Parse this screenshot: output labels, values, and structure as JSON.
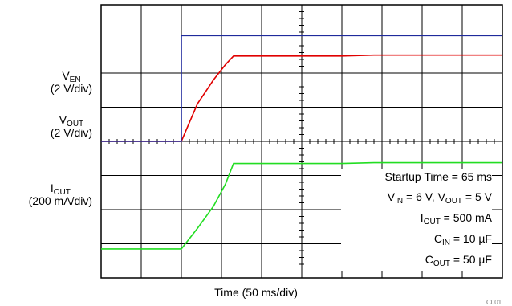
{
  "chart_data": {
    "type": "line",
    "title": "",
    "xlabel": "Time (50 ms/div)",
    "x_unit": "ms",
    "xlim": [
      -100,
      400
    ],
    "divisions": {
      "x": 10,
      "y": 8
    },
    "grid": true,
    "channels": [
      {
        "name": "V_EN",
        "label_main": "V",
        "label_sub": "EN",
        "label_scale": "(2 V/div)",
        "color": "#1f2a9c",
        "unit": "V",
        "values": [
          [
            -100,
            0
          ],
          [
            0,
            0
          ],
          [
            0,
            6.2
          ],
          [
            30,
            6.2
          ],
          [
            400,
            6.2
          ]
        ]
      },
      {
        "name": "V_OUT",
        "label_main": "V",
        "label_sub": "OUT",
        "label_scale": "(2 V/div)",
        "color": "#e00000",
        "unit": "V",
        "values": [
          [
            -100,
            0
          ],
          [
            0,
            0
          ],
          [
            20,
            2.2
          ],
          [
            40,
            3.6
          ],
          [
            55,
            4.5
          ],
          [
            65,
            5.0
          ],
          [
            200,
            5.0
          ],
          [
            240,
            5.05
          ],
          [
            400,
            5.05
          ]
        ]
      },
      {
        "name": "I_OUT",
        "label_main": "I",
        "label_sub": "OUT",
        "label_scale": "(200 mA/div)",
        "color": "#22dd22",
        "unit": "mA",
        "values": [
          [
            -100,
            0
          ],
          [
            0,
            0
          ],
          [
            20,
            120
          ],
          [
            40,
            250
          ],
          [
            55,
            380
          ],
          [
            65,
            500
          ],
          [
            200,
            500
          ],
          [
            240,
            505
          ],
          [
            400,
            505
          ]
        ]
      }
    ],
    "annotations": [
      {
        "text": "Startup Time = 65 ms"
      },
      {
        "parts": [
          [
            "V",
            "IN"
          ],
          [
            " = 6 V, V",
            "OUT"
          ],
          [
            " = 5 V",
            ""
          ]
        ]
      },
      {
        "parts": [
          [
            "I",
            "OUT"
          ],
          [
            " = 500 mA",
            ""
          ]
        ]
      },
      {
        "parts": [
          [
            "C",
            "IN"
          ],
          [
            " = 10 µF",
            ""
          ]
        ]
      },
      {
        "parts": [
          [
            "C",
            "OUT"
          ],
          [
            " = 50 µF",
            ""
          ]
        ]
      }
    ],
    "figure_tag": "C001"
  }
}
